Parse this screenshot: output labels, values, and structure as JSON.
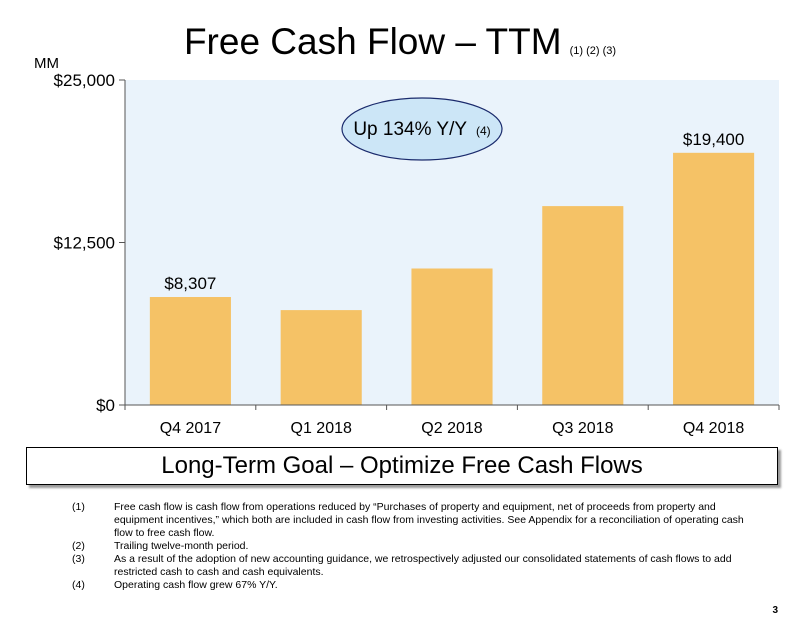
{
  "title": "Free Cash Flow – TTM",
  "title_refs": "(1) (2) (3)",
  "unit_label": "MM",
  "callout": {
    "text": "Up 134% Y/Y",
    "ref": "(4)"
  },
  "goal": "Long-Term Goal – Optimize Free Cash Flows",
  "footnotes": [
    {
      "num": "(1)",
      "text": "Free cash flow is cash flow from operations reduced by “Purchases of property and equipment, net of proceeds from property and equipment incentives,” which both are included in cash flow from investing activities. See Appendix for a reconciliation of operating cash flow to free cash flow."
    },
    {
      "num": "(2)",
      "text": "Trailing twelve-month period."
    },
    {
      "num": "(3)",
      "text": "As a result of the adoption of new accounting guidance, we retrospectively adjusted our consolidated statements of cash flows to add restricted cash to cash and cash equivalents."
    },
    {
      "num": "(4)",
      "text": "Operating cash flow grew 67% Y/Y."
    }
  ],
  "page_number": "3",
  "colors": {
    "bar": "#F5C266",
    "plot_bg": "#EAF3FB",
    "callout_fill": "#CCE6F7",
    "callout_stroke": "#1A2A6C"
  },
  "chart_data": {
    "type": "bar",
    "categories": [
      "Q4 2017",
      "Q1 2018",
      "Q2 2018",
      "Q3 2018",
      "Q4 2018"
    ],
    "values": [
      8307,
      7300,
      10500,
      15300,
      19400
    ],
    "data_labels": [
      "$8,307",
      "",
      "",
      "",
      "$19,400"
    ],
    "yticks": [
      0,
      12500,
      25000
    ],
    "ytick_labels": [
      "$0",
      "$12,500",
      "$25,000"
    ],
    "ylim": [
      0,
      25000
    ],
    "title": "Free Cash Flow – TTM",
    "ylabel": "MM",
    "grid": false
  }
}
